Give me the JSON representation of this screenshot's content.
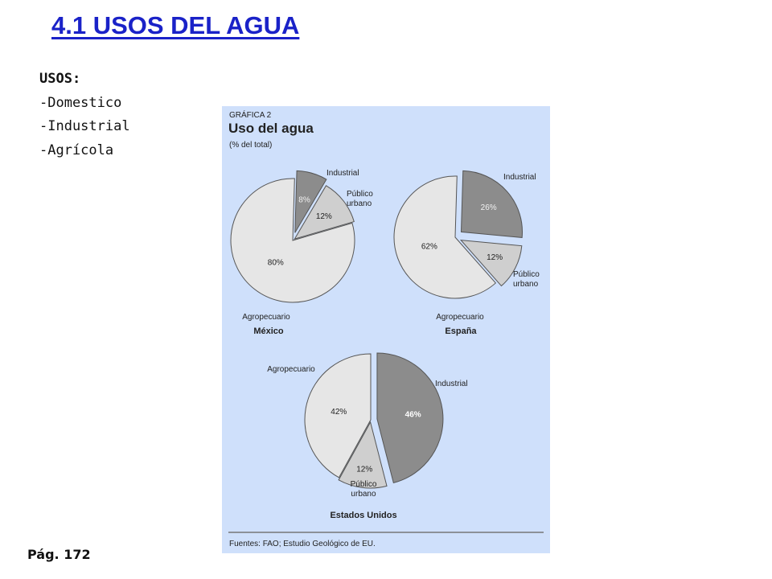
{
  "slide": {
    "title": "4.1 USOS DEL AGUA",
    "uses_heading": "USOS:",
    "uses_items": [
      "-Domestico",
      "-Industrial",
      "-Agrícola"
    ],
    "page_ref": "Pág. 172"
  },
  "figure": {
    "label": "GRÁFICA 2",
    "title": "Uso del agua",
    "subtitle": "(% del total)",
    "source": "Fuentes: FAO; Estudio Geológico de EU."
  },
  "colors": {
    "title": "#1a22c8",
    "background_panel": "#cfe0fb",
    "industrial": "#8c8c8c",
    "publico_urbano": "#cfcfcf",
    "agropecuario": "#e6e6e6"
  },
  "chart_data": [
    {
      "type": "pie",
      "title": "México",
      "slices": [
        {
          "label": "Industrial",
          "value": 8,
          "value_label": "8%"
        },
        {
          "label": "Público urbano",
          "value": 12,
          "value_label": "12%"
        },
        {
          "label": "Agropecuario",
          "value": 80,
          "value_label": "80%"
        }
      ]
    },
    {
      "type": "pie",
      "title": "España",
      "slices": [
        {
          "label": "Industrial",
          "value": 26,
          "value_label": "26%"
        },
        {
          "label": "Público urbano",
          "value": 12,
          "value_label": "12%"
        },
        {
          "label": "Agropecuario",
          "value": 62,
          "value_label": "62%"
        }
      ]
    },
    {
      "type": "pie",
      "title": "Estados Unidos",
      "slices": [
        {
          "label": "Industrial",
          "value": 46,
          "value_label": "46%"
        },
        {
          "label": "Público urbano",
          "value": 12,
          "value_label": "12%"
        },
        {
          "label": "Agropecuario",
          "value": 42,
          "value_label": "42%"
        }
      ]
    }
  ]
}
